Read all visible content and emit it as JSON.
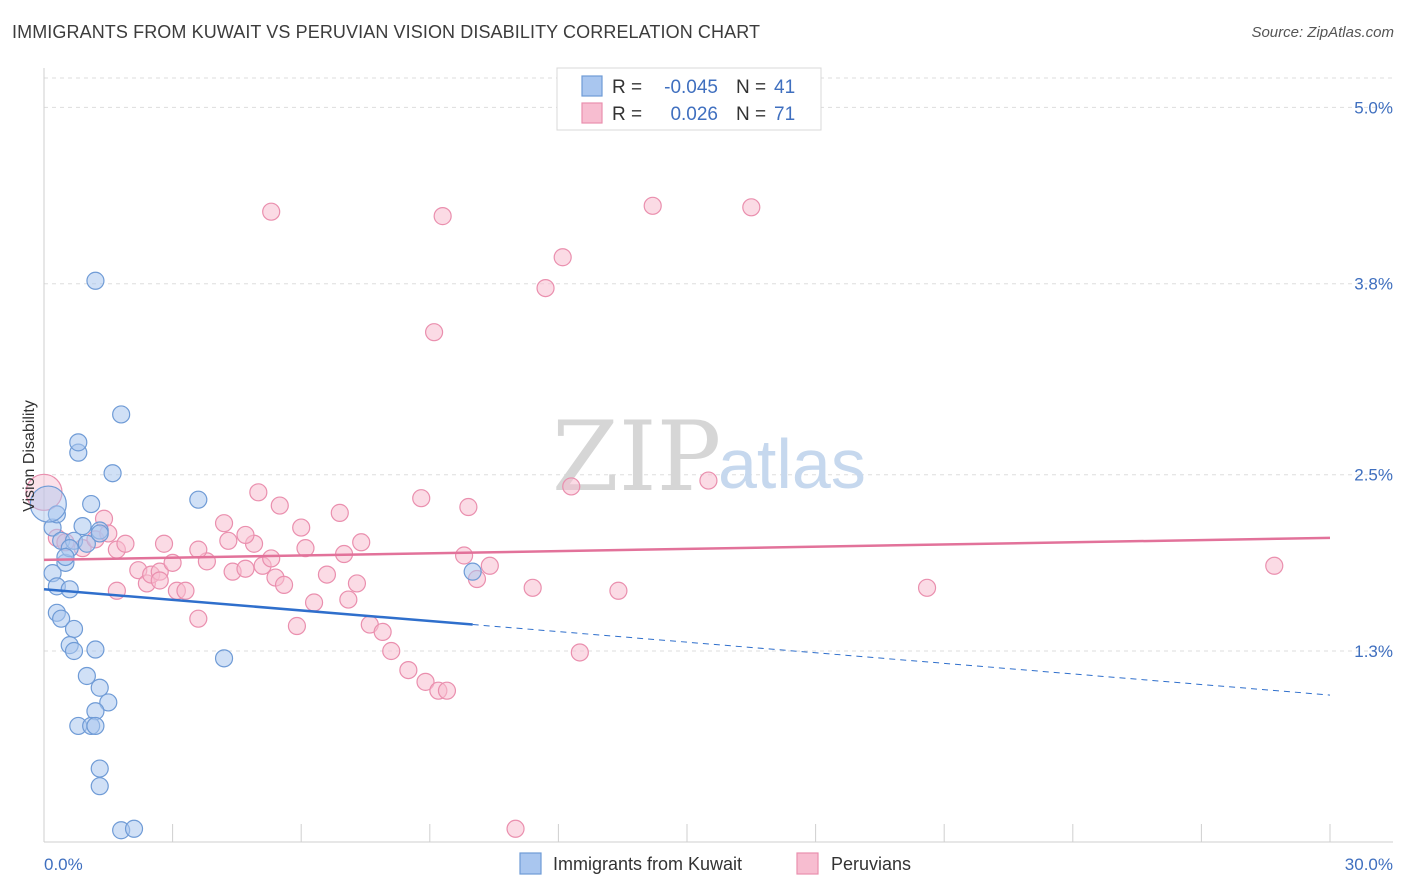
{
  "title": "IMMIGRANTS FROM KUWAIT VS PERUVIAN VISION DISABILITY CORRELATION CHART",
  "source": "Source: ZipAtlas.com",
  "watermark": {
    "zip": "ZIP",
    "atlas": "atlas"
  },
  "legend": {
    "rows": [
      {
        "r_label": "R =",
        "r_value": "-0.045",
        "n_label": "N =",
        "n_value": "41",
        "color": "#a9c6ef",
        "stroke": "#6f9bd6"
      },
      {
        "r_label": "R =",
        "r_value": "0.026",
        "n_label": "N =",
        "n_value": "71",
        "color": "#f7bdd0",
        "stroke": "#ea8fae"
      }
    ]
  },
  "bottom_legend": [
    "Immigrants from Kuwait",
    "Peruvians"
  ],
  "chart_data": {
    "type": "scatter",
    "title": "IMMIGRANTS FROM KUWAIT VS PERUVIAN VISION DISABILITY CORRELATION CHART",
    "xlabel": "",
    "ylabel": "Vision Disability",
    "xlim": [
      0,
      30
    ],
    "ylim": [
      0,
      5.2
    ],
    "x_tick_labels": [
      "0.0%",
      "30.0%"
    ],
    "y_ticks": [
      1.3,
      2.5,
      3.8,
      5.0
    ],
    "y_tick_labels": [
      "1.3%",
      "2.5%",
      "3.8%",
      "5.0%"
    ],
    "series": [
      {
        "name": "Immigrants from Kuwait",
        "color": "#a9c6ef",
        "stroke": "#6f9bd6",
        "line_color": "#2f6fcc",
        "trend": {
          "x0": 0,
          "y0": 1.72,
          "x1": 10,
          "y1": 1.48,
          "x_dash_end": 30,
          "y_dash_end": 1.0
        },
        "points": [
          [
            1.2,
            3.82
          ],
          [
            0.8,
            2.65
          ],
          [
            1.6,
            2.51
          ],
          [
            1.1,
            2.3
          ],
          [
            1.3,
            2.12
          ],
          [
            0.2,
            2.14
          ],
          [
            0.4,
            2.05
          ],
          [
            0.7,
            2.05
          ],
          [
            1.0,
            2.03
          ],
          [
            0.5,
            1.9
          ],
          [
            0.2,
            1.83
          ],
          [
            0.3,
            1.74
          ],
          [
            0.6,
            1.72
          ],
          [
            0.3,
            1.56
          ],
          [
            0.4,
            1.52
          ],
          [
            0.7,
            1.45
          ],
          [
            0.6,
            1.34
          ],
          [
            0.7,
            1.3
          ],
          [
            1.2,
            1.31
          ],
          [
            1.0,
            1.13
          ],
          [
            1.3,
            1.05
          ],
          [
            1.5,
            0.95
          ],
          [
            1.2,
            0.89
          ],
          [
            0.8,
            0.79
          ],
          [
            1.1,
            0.79
          ],
          [
            1.2,
            0.79
          ],
          [
            1.3,
            0.5
          ],
          [
            1.3,
            0.38
          ],
          [
            1.8,
            2.91
          ],
          [
            3.6,
            2.33
          ],
          [
            4.2,
            1.25
          ],
          [
            0.8,
            2.72
          ],
          [
            1.3,
            2.1
          ],
          [
            0.6,
            2.0
          ],
          [
            10.0,
            1.84
          ],
          [
            1.8,
            0.08
          ],
          [
            2.1,
            0.09
          ],
          [
            0.9,
            2.15
          ],
          [
            0.5,
            1.94
          ],
          [
            0.3,
            2.23
          ],
          [
            0.1,
            2.3
          ]
        ]
      },
      {
        "name": "Peruvians",
        "color": "#f7bdd0",
        "stroke": "#ea8fae",
        "line_color": "#e2729a",
        "trend": {
          "x0": 0,
          "y0": 1.92,
          "x1": 30,
          "y1": 2.07
        },
        "points": [
          [
            0.0,
            2.38
          ],
          [
            0.3,
            2.07
          ],
          [
            0.5,
            2.04
          ],
          [
            0.9,
            2.0
          ],
          [
            1.2,
            2.06
          ],
          [
            1.4,
            2.2
          ],
          [
            1.5,
            2.1
          ],
          [
            1.7,
            1.99
          ],
          [
            1.9,
            2.03
          ],
          [
            2.2,
            1.85
          ],
          [
            2.4,
            1.76
          ],
          [
            2.5,
            1.82
          ],
          [
            2.7,
            1.84
          ],
          [
            2.8,
            2.03
          ],
          [
            3.0,
            1.9
          ],
          [
            3.1,
            1.71
          ],
          [
            3.3,
            1.71
          ],
          [
            3.6,
            1.52
          ],
          [
            3.8,
            1.91
          ],
          [
            4.2,
            2.17
          ],
          [
            4.3,
            2.05
          ],
          [
            4.4,
            1.84
          ],
          [
            4.7,
            1.86
          ],
          [
            4.9,
            2.03
          ],
          [
            5.1,
            1.88
          ],
          [
            5.3,
            1.93
          ],
          [
            5.4,
            1.8
          ],
          [
            5.6,
            1.75
          ],
          [
            5.9,
            1.47
          ],
          [
            6.1,
            2.0
          ],
          [
            6.3,
            1.63
          ],
          [
            6.6,
            1.82
          ],
          [
            6.9,
            2.24
          ],
          [
            7.0,
            1.96
          ],
          [
            7.3,
            1.76
          ],
          [
            7.6,
            1.48
          ],
          [
            7.9,
            1.43
          ],
          [
            8.1,
            1.3
          ],
          [
            8.5,
            1.17
          ],
          [
            8.9,
            1.09
          ],
          [
            9.2,
            1.03
          ],
          [
            9.4,
            1.03
          ],
          [
            9.8,
            1.95
          ],
          [
            10.1,
            1.79
          ],
          [
            10.4,
            1.88
          ],
          [
            11.0,
            0.09
          ],
          [
            11.4,
            1.73
          ],
          [
            12.1,
            3.98
          ],
          [
            12.3,
            2.42
          ],
          [
            12.5,
            1.29
          ],
          [
            14.2,
            4.33
          ],
          [
            5.3,
            4.29
          ],
          [
            9.1,
            3.47
          ],
          [
            11.7,
            3.77
          ],
          [
            5.0,
            2.38
          ],
          [
            5.5,
            2.29
          ],
          [
            7.4,
            2.04
          ],
          [
            8.8,
            2.34
          ],
          [
            9.9,
            2.28
          ],
          [
            6.0,
            2.14
          ],
          [
            4.7,
            2.09
          ],
          [
            3.6,
            1.99
          ],
          [
            2.7,
            1.78
          ],
          [
            1.7,
            1.71
          ],
          [
            16.5,
            4.32
          ],
          [
            20.6,
            1.73
          ],
          [
            28.7,
            1.88
          ],
          [
            15.5,
            2.46
          ],
          [
            13.4,
            1.71
          ],
          [
            9.3,
            4.26
          ],
          [
            7.1,
            1.65
          ]
        ]
      }
    ]
  }
}
